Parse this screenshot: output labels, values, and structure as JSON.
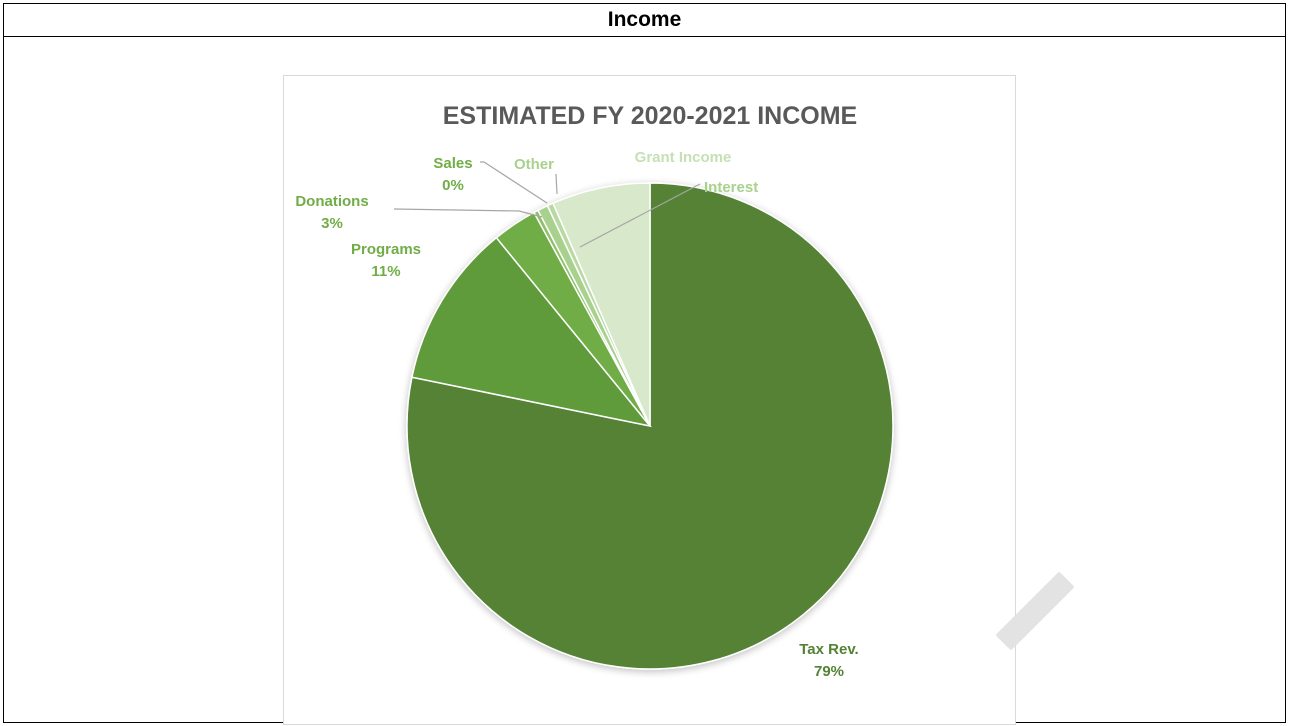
{
  "header": {
    "title": "Income"
  },
  "colors": {
    "tax_rev": "#548235",
    "programs": "#5f9a3a",
    "donations": "#70ad47",
    "sales": "#8ec167",
    "other": "#a9d18e",
    "interest": "#b8d9a1",
    "grant_income": "#d7e8cb",
    "title_text": "#595959",
    "label_dark": "#548235",
    "label_mid": "#70ad47",
    "label_light": "#a9d18e",
    "label_lightest": "#c5e0b4",
    "leader_line": "#a6a6a6"
  },
  "chart_data": {
    "type": "pie",
    "title": "ESTIMATED FY 2020-2021 INCOME",
    "slices": [
      {
        "name": "Tax Rev.",
        "value": 79,
        "label": "Tax Rev.",
        "pct_label": "79%"
      },
      {
        "name": "Programs",
        "value": 11,
        "label": "Programs",
        "pct_label": "11%"
      },
      {
        "name": "Donations",
        "value": 3,
        "label": "Donations",
        "pct_label": "3%"
      },
      {
        "name": "Sales",
        "value": 0.3,
        "label": "Sales",
        "pct_label": "0%"
      },
      {
        "name": "Other",
        "value": 0.7,
        "label": "Other",
        "pct_label": ""
      },
      {
        "name": "Interest",
        "value": 0.4,
        "label": "Interest",
        "pct_label": ""
      },
      {
        "name": "Grant Income",
        "value": 6.6,
        "label": "Grant Income",
        "pct_label": ""
      }
    ]
  }
}
